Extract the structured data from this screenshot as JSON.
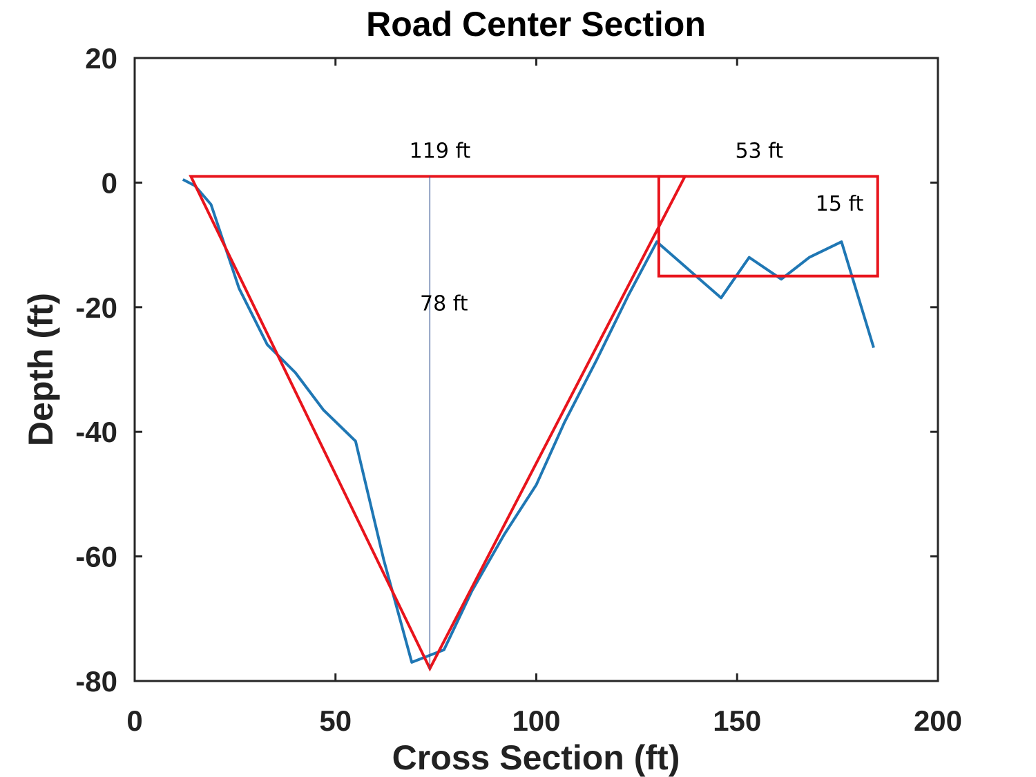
{
  "chart_data": {
    "type": "line",
    "title": "Road Center Section",
    "xlabel": "Cross Section (ft)",
    "ylabel": "Depth (ft)",
    "xlim": [
      0,
      200
    ],
    "ylim": [
      -80,
      20
    ],
    "xticks": [
      0,
      50,
      100,
      150,
      200
    ],
    "yticks": [
      -80,
      -60,
      -40,
      -20,
      0,
      20
    ],
    "grid": false,
    "series": [
      {
        "color": "#1f77b4",
        "x": [
          12,
          15,
          19,
          26,
          33,
          40,
          47,
          55,
          62,
          69,
          77,
          84,
          92,
          100,
          107,
          115,
          123,
          130,
          138,
          146,
          153,
          161,
          168,
          176,
          184
        ],
        "y": [
          0.5,
          -0.5,
          -3.5,
          -17,
          -26,
          -30.5,
          -36.5,
          -41.5,
          -60.5,
          -77,
          -75,
          -65.5,
          -56.5,
          -48.5,
          -38.5,
          -28.5,
          -18,
          -9.5,
          -14,
          -18.5,
          -12,
          -15.5,
          -12,
          -9.5,
          -26.5
        ]
      }
    ],
    "annotations": {
      "color": "#e8141c",
      "triangle": {
        "x": [
          14,
          73.5,
          137
        ],
        "y": [
          1,
          -78,
          1
        ]
      },
      "depth_line": {
        "x": 73.5,
        "y_top": 1,
        "y_bottom": -78
      },
      "box": {
        "x": [
          130.5,
          185
        ],
        "y": [
          1,
          -15
        ]
      },
      "labels": [
        {
          "text": "119 ft",
          "x": 76,
          "y": 4
        },
        {
          "text": "53 ft",
          "x": 155.5,
          "y": 4
        },
        {
          "text": "15 ft",
          "x": 175.5,
          "y": -4.5
        },
        {
          "text": "78 ft",
          "x": 77,
          "y": -20.5
        }
      ]
    }
  }
}
